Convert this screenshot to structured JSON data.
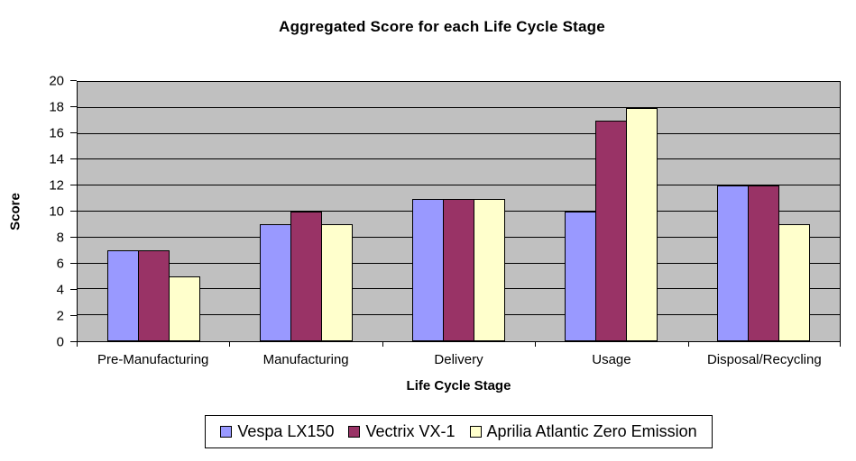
{
  "chart_data": {
    "type": "bar",
    "title": "Aggregated Score for each Life Cycle Stage",
    "xlabel": "Life Cycle Stage",
    "ylabel": "Score",
    "categories": [
      "Pre-Manufacturing",
      "Manufacturing",
      "Delivery",
      "Usage",
      "Disposal/Recycling"
    ],
    "series": [
      {
        "name": "Vespa LX150",
        "color": "#9999FF",
        "values": [
          7,
          9,
          11,
          10,
          12
        ]
      },
      {
        "name": "Vectrix VX-1",
        "color": "#993366",
        "values": [
          7,
          10,
          11,
          17,
          12
        ]
      },
      {
        "name": "Aprilia Atlantic Zero Emission",
        "color": "#FFFFCC",
        "values": [
          5,
          9,
          11,
          18,
          9
        ]
      }
    ],
    "ylim": [
      0,
      20
    ],
    "ytick_step": 2,
    "grid": true,
    "legend_position": "bottom",
    "colors": {
      "plot_background": "#C0C0C0",
      "gridline": "#000000",
      "bar_border": "#000000",
      "text": "#000000",
      "page_background": "#FFFFFF"
    }
  }
}
